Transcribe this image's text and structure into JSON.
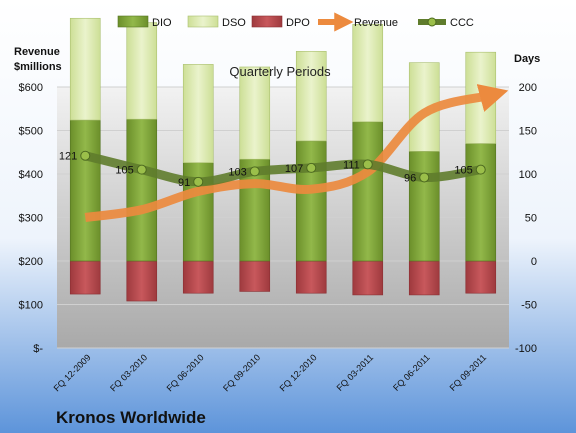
{
  "chart_data": {
    "type": "bar",
    "title": "Quarterly Periods",
    "company": "Kronos Worldwide",
    "left_axis_label_line1": "Revenue",
    "left_axis_label_line2": "$millions",
    "right_axis_label": "Days",
    "categories": [
      "FQ 12-2009",
      "FQ 03-2010",
      "FQ 06-2010",
      "FQ 09-2010",
      "FQ 12-2010",
      "FQ 03-2011",
      "FQ 06-2011",
      "FQ 09-2011"
    ],
    "left_ticks": [
      "$-",
      "$100",
      "$200",
      "$300",
      "$400",
      "$500",
      "$600"
    ],
    "left_ylim": [
      0,
      600
    ],
    "right_ticks": [
      "-100",
      "-50",
      "0",
      "50",
      "100",
      "150",
      "200"
    ],
    "right_ylim": [
      -100,
      200
    ],
    "legend_position": "top",
    "series": [
      {
        "name": "DIO",
        "type": "bar",
        "axis": "right",
        "color": "#7fa338",
        "values": [
          162,
          163,
          113,
          117,
          138,
          160,
          126,
          135
        ]
      },
      {
        "name": "DSO",
        "type": "bar",
        "axis": "right",
        "color": "#dbe9b0",
        "values": [
          117,
          111,
          113,
          106,
          103,
          112,
          102,
          105
        ]
      },
      {
        "name": "DPO",
        "type": "bar",
        "axis": "right",
        "color": "#b84a4e",
        "values": [
          -38,
          -46,
          -37,
          -35,
          -37,
          -39,
          -39,
          -37
        ]
      },
      {
        "name": "Revenue",
        "type": "line",
        "axis": "left",
        "color": "#ec8a3e",
        "values": [
          300,
          318,
          360,
          378,
          365,
          405,
          540,
          580
        ]
      },
      {
        "name": "CCC",
        "type": "line",
        "axis": "right",
        "color": "#5f7c2c",
        "values": [
          121,
          105,
          91,
          103,
          107,
          111,
          96,
          105
        ],
        "labels": [
          "121",
          "105",
          "91",
          "103",
          "107",
          "111",
          "96",
          "105"
        ]
      }
    ]
  }
}
